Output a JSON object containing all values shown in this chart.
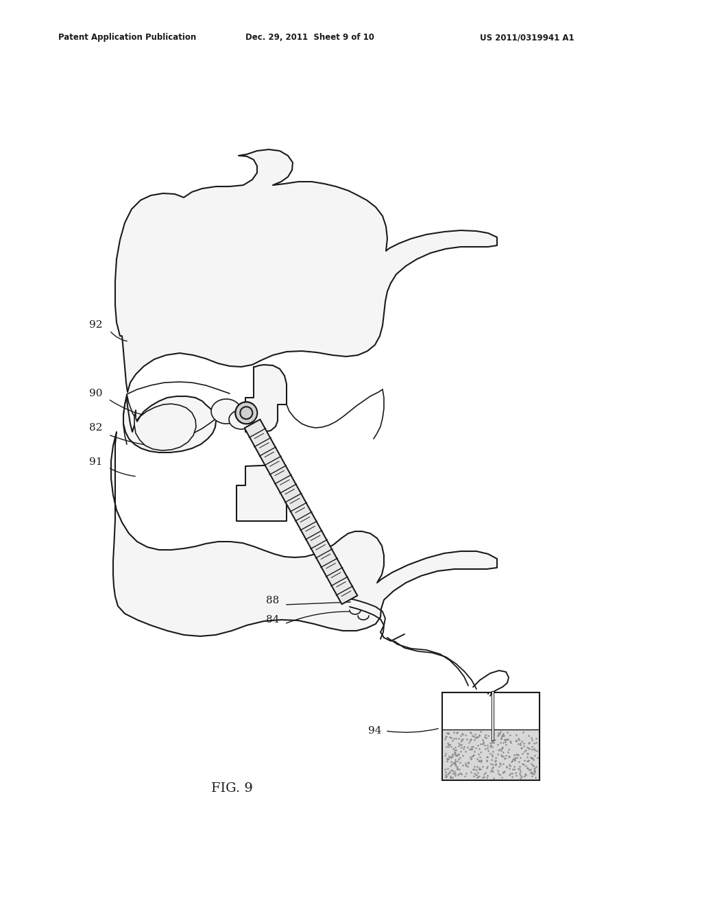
{
  "bg_color": "#ffffff",
  "line_color": "#1a1a1a",
  "header_left": "Patent Application Publication",
  "header_mid": "Dec. 29, 2011  Sheet 9 of 10",
  "header_right": "US 2011/0319941 A1",
  "fig_label": "FIG. 9",
  "lw": 1.5,
  "vertebra_fc": "#f5f5f5",
  "screw_fc": "#e8e8e8",
  "label_fs": 11
}
